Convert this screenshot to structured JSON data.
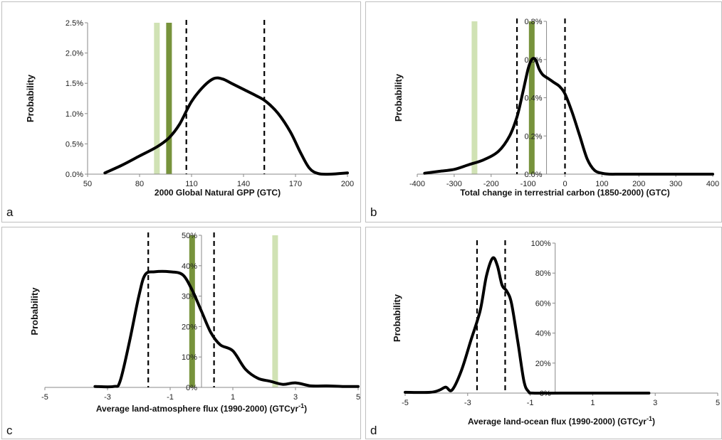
{
  "chart_data": [
    {
      "type": "line",
      "panel_letter": "a",
      "title": "",
      "xlabel": "2000 Global Natural GPP (GTC)",
      "ylabel": "Probability",
      "xlim": [
        50,
        200
      ],
      "ylim": [
        0,
        2.5
      ],
      "x_ticks": [
        50,
        80,
        110,
        140,
        170,
        200
      ],
      "x_tick_labels": [
        "50",
        "80",
        "110",
        "140",
        "170",
        "200"
      ],
      "y_ticks": [
        0,
        0.5,
        1.0,
        1.5,
        2.0,
        2.5
      ],
      "y_tick_labels": [
        "0.0%",
        "0.5%",
        "1.0%",
        "1.5%",
        "2.0%",
        "2.5%"
      ],
      "y_axis_at": 50,
      "grid": false,
      "series": [
        {
          "color": "#000000",
          "x": [
            60,
            70,
            80,
            90,
            97,
            103,
            110,
            117,
            123,
            128,
            133,
            140,
            147,
            153,
            160,
            167,
            173,
            178,
            183,
            190,
            200
          ],
          "y": [
            0.02,
            0.15,
            0.3,
            0.45,
            0.6,
            0.82,
            1.2,
            1.45,
            1.58,
            1.57,
            1.5,
            1.4,
            1.3,
            1.2,
            1.0,
            0.7,
            0.35,
            0.1,
            0.01,
            0.0,
            0.02
          ]
        }
      ],
      "vertical_lines": [
        {
          "x": 107,
          "style": "dashed",
          "color": "#000000"
        },
        {
          "x": 152,
          "style": "dashed",
          "color": "#000000"
        }
      ],
      "vertical_bands": [
        {
          "x": 90,
          "color": "#d0e2b4"
        },
        {
          "x": 97,
          "color": "#77933c"
        }
      ]
    },
    {
      "type": "line",
      "panel_letter": "b",
      "title": "",
      "xlabel": "Total change in terrestrial carbon (1850-2000) (GTC)",
      "ylabel": "Probability",
      "xlim": [
        -400,
        400
      ],
      "ylim": [
        0,
        0.8
      ],
      "x_ticks": [
        -400,
        -300,
        -200,
        -100,
        0,
        100,
        200,
        300,
        400
      ],
      "x_tick_labels": [
        "-400",
        "-300",
        "-200",
        "-100",
        "0",
        "100",
        "200",
        "300",
        "400"
      ],
      "y_ticks": [
        0,
        0.2,
        0.4,
        0.6,
        0.8
      ],
      "y_tick_labels": [
        "0.0%",
        "0.2%",
        "0.4%",
        "0.6%",
        "0.8%"
      ],
      "y_axis_at": -50,
      "grid": false,
      "series": [
        {
          "color": "#000000",
          "x": [
            -380,
            -340,
            -300,
            -260,
            -220,
            -180,
            -150,
            -130,
            -115,
            -100,
            -90,
            -80,
            -70,
            -60,
            -45,
            -30,
            -15,
            0,
            20,
            40,
            60,
            80,
            100,
            120,
            150,
            200,
            300,
            400
          ],
          "y": [
            0.005,
            0.015,
            0.025,
            0.05,
            0.075,
            0.12,
            0.2,
            0.3,
            0.42,
            0.55,
            0.6,
            0.6,
            0.55,
            0.52,
            0.5,
            0.48,
            0.46,
            0.42,
            0.32,
            0.2,
            0.08,
            0.02,
            0.005,
            0.0,
            0.0,
            0.0,
            0.0,
            0.0
          ]
        }
      ],
      "vertical_lines": [
        {
          "x": -130,
          "style": "dashed",
          "color": "#000000"
        },
        {
          "x": 0,
          "style": "dashed",
          "color": "#000000"
        }
      ],
      "vertical_bands": [
        {
          "x": -245,
          "color": "#d0e2b4"
        },
        {
          "x": -90,
          "color": "#77933c"
        }
      ]
    },
    {
      "type": "line",
      "panel_letter": "c",
      "title": "",
      "xlabel": "Average land-atmosphere flux (1990-2000) (GTCyr",
      "xlabel_sup": "-1",
      "xlabel_end": ")",
      "ylabel": "Probability",
      "xlim": [
        -5,
        5
      ],
      "ylim": [
        0,
        50
      ],
      "x_ticks": [
        -5,
        -3,
        -1,
        1,
        3,
        5
      ],
      "x_tick_labels": [
        "-5",
        "-3",
        "-1",
        "1",
        "3",
        "5"
      ],
      "y_ticks": [
        0,
        10,
        20,
        30,
        40,
        50
      ],
      "y_tick_labels": [
        "0%",
        "10%",
        "20%",
        "30%",
        "40%",
        "50%"
      ],
      "y_axis_at": 0,
      "grid": false,
      "series": [
        {
          "color": "#000000",
          "x": [
            -3.4,
            -2.8,
            -2.6,
            -2.3,
            -2.0,
            -1.8,
            -1.5,
            -1.0,
            -0.6,
            -0.3,
            0.0,
            0.3,
            0.6,
            1.0,
            1.4,
            1.8,
            2.2,
            2.6,
            3.0,
            3.5,
            4.0,
            4.5,
            5.0
          ],
          "y": [
            0.3,
            0.3,
            2,
            15,
            30,
            37,
            38,
            38,
            37,
            32,
            25,
            18,
            14,
            12,
            6,
            3,
            2,
            1,
            1.5,
            0.5,
            0.5,
            0.3,
            0.3
          ]
        }
      ],
      "vertical_lines": [
        {
          "x": -1.7,
          "style": "dashed",
          "color": "#000000"
        },
        {
          "x": 0.4,
          "style": "dashed",
          "color": "#000000"
        }
      ],
      "vertical_bands": [
        {
          "x": -0.3,
          "color": "#77933c"
        },
        {
          "x": 2.35,
          "color": "#d0e2b4"
        }
      ]
    },
    {
      "type": "line",
      "panel_letter": "d",
      "title": "",
      "xlabel": "Average land-ocean flux (1990-2000)  (GTCyr",
      "xlabel_sup": "-1",
      "xlabel_end": ")",
      "ylabel": "Probability",
      "xlim": [
        -5,
        5
      ],
      "ylim": [
        0,
        100
      ],
      "x_ticks": [
        -5,
        -3,
        -1,
        1,
        3,
        5
      ],
      "x_tick_labels": [
        "-5",
        "-3",
        "-1",
        "1",
        "3",
        "5"
      ],
      "y_ticks": [
        0,
        20,
        40,
        60,
        80,
        100
      ],
      "y_tick_labels": [
        "0%",
        "20%",
        "40%",
        "60%",
        "80%",
        "100%"
      ],
      "y_axis_at": -0.2,
      "grid": false,
      "series": [
        {
          "color": "#000000",
          "x": [
            -5.0,
            -4.2,
            -3.9,
            -3.7,
            -3.5,
            -3.2,
            -2.9,
            -2.6,
            -2.4,
            -2.2,
            -2.05,
            -1.9,
            -1.75,
            -1.6,
            -1.4,
            -1.2,
            -1.05,
            -0.9,
            0.0,
            1.0,
            2.0,
            2.8
          ],
          "y": [
            0.5,
            0.5,
            2,
            4,
            2,
            15,
            35,
            55,
            78,
            90,
            85,
            72,
            68,
            60,
            35,
            8,
            1,
            0,
            0,
            0,
            0,
            0
          ]
        }
      ],
      "vertical_lines": [
        {
          "x": -2.7,
          "style": "dashed",
          "color": "#000000"
        },
        {
          "x": -1.8,
          "style": "dashed",
          "color": "#000000"
        }
      ],
      "vertical_bands": []
    }
  ]
}
